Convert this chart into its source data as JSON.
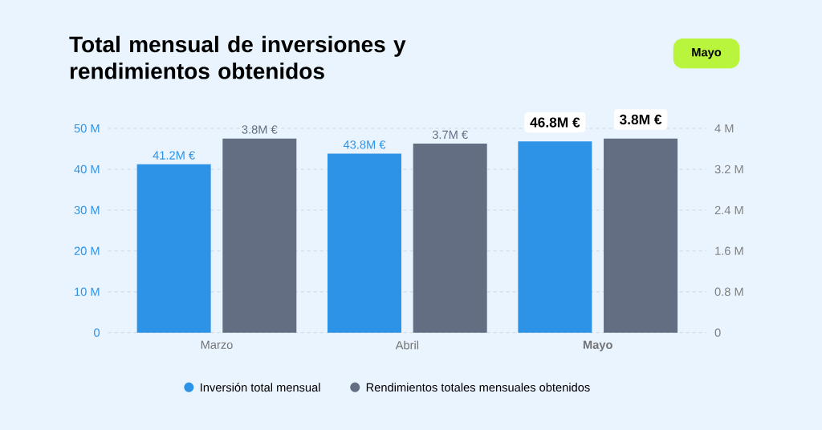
{
  "chart_data": {
    "type": "bar",
    "title": "Total mensual de inversiones y rendimientos obtenidos",
    "annotations": [
      "Mayo"
    ],
    "categories": [
      "Marzo",
      "Abril",
      "Mayo"
    ],
    "series": [
      {
        "name": "Inversión total mensual",
        "color": "#2d93e6",
        "values": [
          41.2,
          43.8,
          46.8
        ],
        "value_labels": [
          "41.2M €",
          "43.8M €",
          "46.8M €"
        ]
      },
      {
        "name": "Rendimientos totales mensuales obtenidos",
        "color": "#636e82",
        "axis": "y2",
        "values": [
          3.8,
          3.7,
          3.8
        ],
        "value_labels": [
          "3.8M €",
          "3.7M €",
          "3.8M €"
        ]
      }
    ],
    "ylim": [
      0,
      50
    ],
    "yticks": [
      0,
      {
        "value": 10,
        "label": "10 M"
      },
      {
        "value": 20,
        "label": "20 M"
      },
      {
        "value": 30,
        "label": "30 M"
      },
      {
        "value": 40,
        "label": "40 M"
      },
      {
        "value": 50,
        "label": "50 M"
      }
    ],
    "y2lim": [
      0,
      4
    ],
    "y2ticks": [
      0,
      {
        "value": 0.8,
        "label": "0.8 M"
      },
      {
        "value": 1.6,
        "label": "1.6 M"
      },
      {
        "value": 2.4,
        "label": "2.4 M"
      },
      {
        "value": 3.2,
        "label": "3.2 M"
      },
      {
        "value": 4,
        "label": "4 M"
      }
    ],
    "grid": "y",
    "legend": "bottom"
  }
}
